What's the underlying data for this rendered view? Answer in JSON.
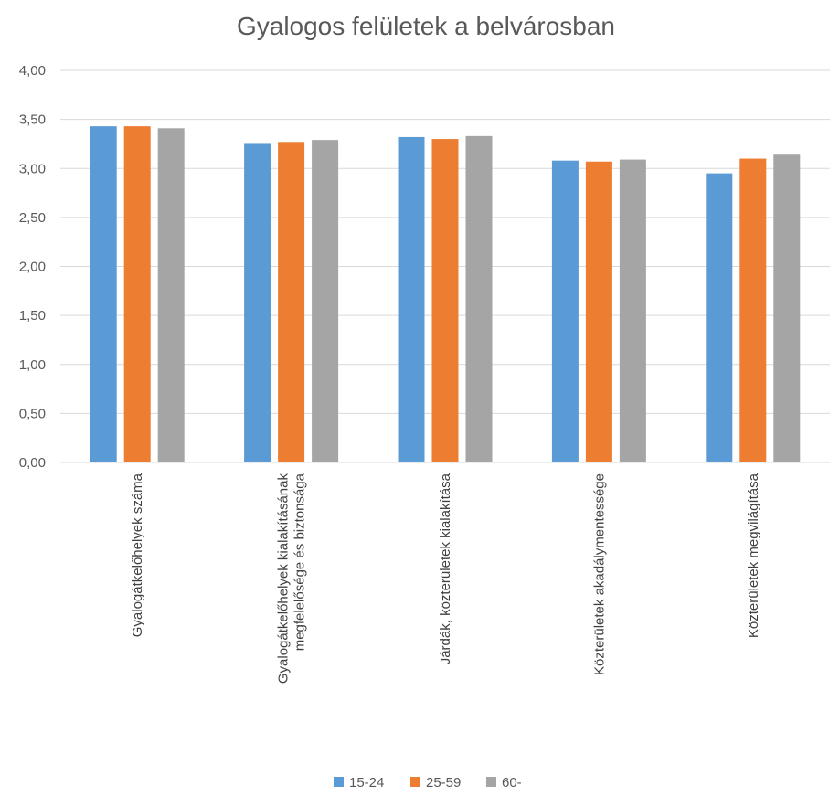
{
  "chart_data": {
    "type": "bar",
    "title": "Gyalogos felületek a belvárosban",
    "xlabel": "",
    "ylabel": "",
    "ylim": [
      0,
      4
    ],
    "yticks": [
      "0,00",
      "0,50",
      "1,00",
      "1,50",
      "2,00",
      "2,50",
      "3,00",
      "3,50",
      "4,00"
    ],
    "grid": true,
    "legend_position": "bottom",
    "categories": [
      [
        "Gyalogátkelőhelyek száma"
      ],
      [
        "Gyalogátkelőhelyek kialakításának",
        "megfelelősége és biztonsága"
      ],
      [
        "Járdák, közterületek kialakítása"
      ],
      [
        "Közterületek akadálymentessége"
      ],
      [
        "Közterületek megvilágítása"
      ]
    ],
    "series": [
      {
        "name": "15-24",
        "color": "#5B9BD5",
        "values": [
          3.43,
          3.25,
          3.32,
          3.08,
          2.95
        ]
      },
      {
        "name": "25-59",
        "color": "#ED7D31",
        "values": [
          3.43,
          3.27,
          3.3,
          3.07,
          3.1
        ]
      },
      {
        "name": "60-",
        "color": "#A5A5A5",
        "values": [
          3.41,
          3.29,
          3.33,
          3.09,
          3.14
        ]
      }
    ]
  }
}
